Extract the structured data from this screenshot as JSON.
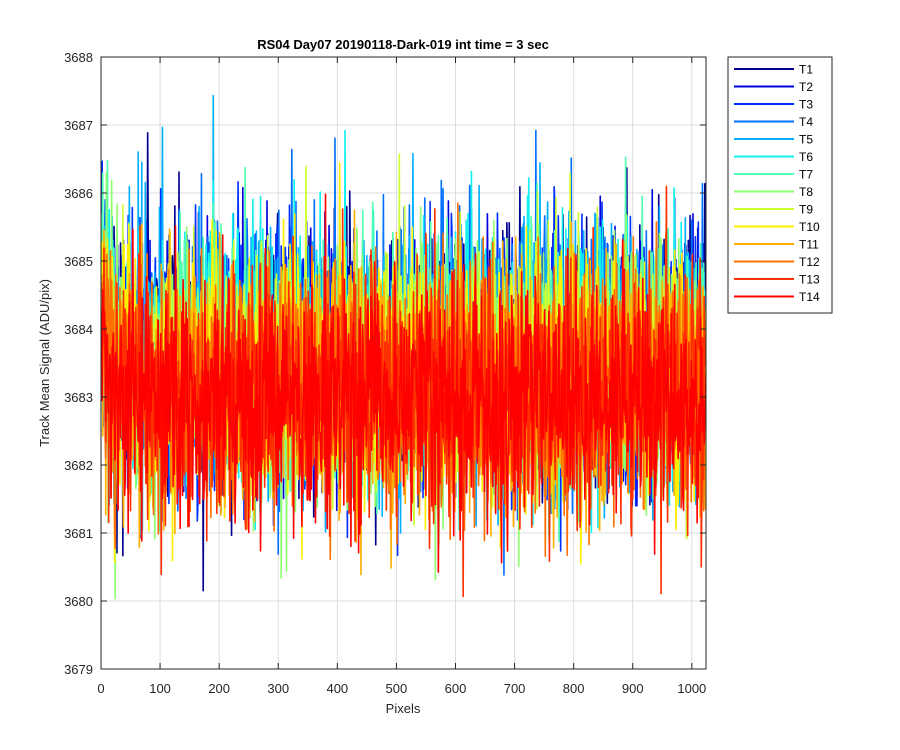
{
  "chart_data": {
    "type": "line",
    "title": "RS04 Day07 20190118-Dark-019 int time = 3 sec",
    "xlabel": "Pixels",
    "ylabel": "Track Mean Signal (ADU/pix)",
    "xlim": [
      0,
      1024
    ],
    "ylim": [
      3679,
      3688
    ],
    "xticks": [
      0,
      100,
      200,
      300,
      400,
      500,
      600,
      700,
      800,
      900,
      1000
    ],
    "yticks": [
      3679,
      3680,
      3681,
      3682,
      3683,
      3684,
      3685,
      3686,
      3687,
      3688
    ],
    "grid": true,
    "legend_position": "outside-top-right",
    "series": [
      {
        "name": "T1",
        "color": "#00008f",
        "mean": 3683.6,
        "spread": 0.95
      },
      {
        "name": "T2",
        "color": "#0000df",
        "mean": 3683.6,
        "spread": 0.95
      },
      {
        "name": "T3",
        "color": "#0030ff",
        "mean": 3683.6,
        "spread": 0.95
      },
      {
        "name": "T4",
        "color": "#0070ff",
        "mean": 3683.6,
        "spread": 0.95
      },
      {
        "name": "T5",
        "color": "#00b0ff",
        "mean": 3683.6,
        "spread": 0.95
      },
      {
        "name": "T6",
        "color": "#10f0ef",
        "mean": 3683.5,
        "spread": 0.9
      },
      {
        "name": "T7",
        "color": "#50ffaf",
        "mean": 3683.5,
        "spread": 0.9
      },
      {
        "name": "T8",
        "color": "#90ff6f",
        "mean": 3683.4,
        "spread": 0.9
      },
      {
        "name": "T9",
        "color": "#cfff30",
        "mean": 3683.4,
        "spread": 0.9
      },
      {
        "name": "T10",
        "color": "#ffef00",
        "mean": 3683.3,
        "spread": 0.9
      },
      {
        "name": "T11",
        "color": "#ffb000",
        "mean": 3683.2,
        "spread": 0.9
      },
      {
        "name": "T12",
        "color": "#ff7000",
        "mean": 3683.1,
        "spread": 0.9
      },
      {
        "name": "T13",
        "color": "#ff3000",
        "mean": 3683.0,
        "spread": 0.9
      },
      {
        "name": "T14",
        "color": "#ff0000",
        "mean": 3683.0,
        "spread": 0.85
      }
    ]
  }
}
